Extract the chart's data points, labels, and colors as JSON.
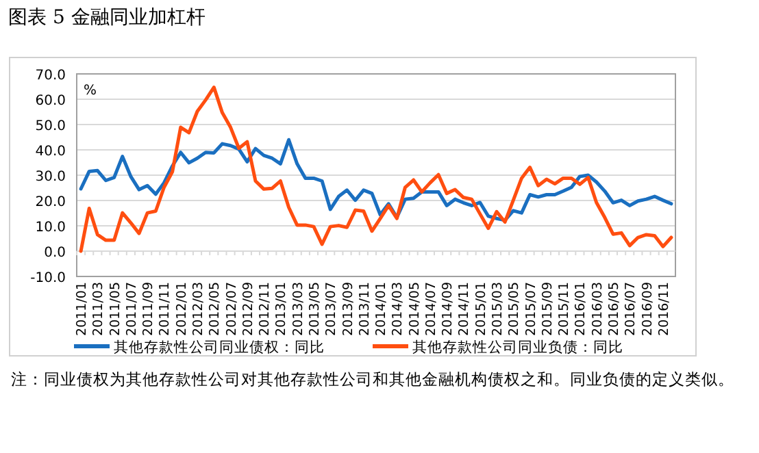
{
  "chart_data": {
    "type": "line",
    "title": "图表 5 金融同业加杠杆",
    "ylabel": "%",
    "categories": [
      "2011/01",
      null,
      "2011/03",
      null,
      "2011/05",
      null,
      "2011/07",
      null,
      "2011/09",
      null,
      "2011/11",
      null,
      "2012/01",
      null,
      "2012/03",
      null,
      "2012/05",
      null,
      "2012/07",
      null,
      "2012/09",
      null,
      "2012/11",
      null,
      "2013/01",
      null,
      "2013/03",
      null,
      "2013/05",
      null,
      "2013/07",
      null,
      "2013/09",
      null,
      "2013/11",
      null,
      "2014/01",
      null,
      "2014/03",
      null,
      "2014/05",
      null,
      "2014/07",
      null,
      "2014/09",
      null,
      "2014/11",
      null,
      "2015/01",
      null,
      "2015/03",
      null,
      "2015/05",
      null,
      "2015/07",
      null,
      "2015/09",
      null,
      "2015/11",
      null,
      "2016/01",
      null,
      "2016/03",
      null,
      "2016/05",
      null,
      "2016/07",
      null,
      "2016/09",
      null,
      "2016/11",
      null
    ],
    "series": [
      {
        "name": "其他存款性公司同业债权：同比",
        "color": "#1a6fc0",
        "values": [
          24.6,
          31.5,
          31.8,
          27.9,
          29.1,
          37.4,
          29.5,
          24.3,
          25.9,
          22.5,
          27.0,
          33.6,
          39.0,
          34.9,
          36.7,
          39.0,
          38.8,
          42.4,
          41.7,
          40.3,
          35.3,
          40.5,
          37.8,
          36.7,
          34.5,
          44.0,
          34.5,
          28.8,
          28.8,
          27.7,
          16.5,
          21.6,
          24.1,
          20.1,
          24.1,
          22.8,
          14.4,
          18.7,
          13.3,
          20.5,
          20.9,
          23.4,
          23.4,
          23.4,
          18.0,
          20.5,
          19.1,
          18.0,
          19.2,
          13.8,
          12.9,
          12.2,
          16.0,
          15.1,
          22.3,
          21.4,
          22.3,
          22.3,
          23.7,
          25.2,
          29.5,
          30.0,
          27.3,
          23.7,
          19.1,
          20.1,
          18.0,
          19.8,
          20.5,
          21.6,
          20.1,
          18.7
        ]
      },
      {
        "name": "其他存款性公司同业负债：同比",
        "color": "#ff4e10",
        "values": [
          0.0,
          16.9,
          6.5,
          4.3,
          4.3,
          15.1,
          11.2,
          7.0,
          15.1,
          15.8,
          25.2,
          31.3,
          48.9,
          46.8,
          55.2,
          59.7,
          64.7,
          54.7,
          48.9,
          40.6,
          43.2,
          27.7,
          24.5,
          24.8,
          27.7,
          17.3,
          10.3,
          10.3,
          9.7,
          2.7,
          9.7,
          10.1,
          9.4,
          16.2,
          15.8,
          7.9,
          12.9,
          18.0,
          12.9,
          25.2,
          28.1,
          23.4,
          27.0,
          30.2,
          22.8,
          24.3,
          21.2,
          20.5,
          14.7,
          9.0,
          15.6,
          11.5,
          20.1,
          28.8,
          33.1,
          25.9,
          28.4,
          26.6,
          28.8,
          28.8,
          26.4,
          29.1,
          19.2,
          13.3,
          6.7,
          7.2,
          2.2,
          5.4,
          6.5,
          6.1,
          1.8,
          5.4
        ]
      }
    ],
    "ylim": [
      -10,
      70
    ],
    "yticks": [
      {
        "value": -10,
        "label": "-10.0"
      },
      {
        "value": 0,
        "label": "0.0"
      },
      {
        "value": 10,
        "label": "10.0"
      },
      {
        "value": 20,
        "label": "20.0"
      },
      {
        "value": 30,
        "label": "30.0"
      },
      {
        "value": 40,
        "label": "40.0"
      },
      {
        "value": 50,
        "label": "50.0"
      },
      {
        "value": 60,
        "label": "60.0"
      },
      {
        "value": 70,
        "label": "70.0"
      }
    ],
    "grid": "y",
    "legend": "bottom",
    "annotations": [
      "注：同业债权为其他存款性公司对其他存款性公司和其他金融机构债权之和。同业负债的定义类似。"
    ]
  }
}
